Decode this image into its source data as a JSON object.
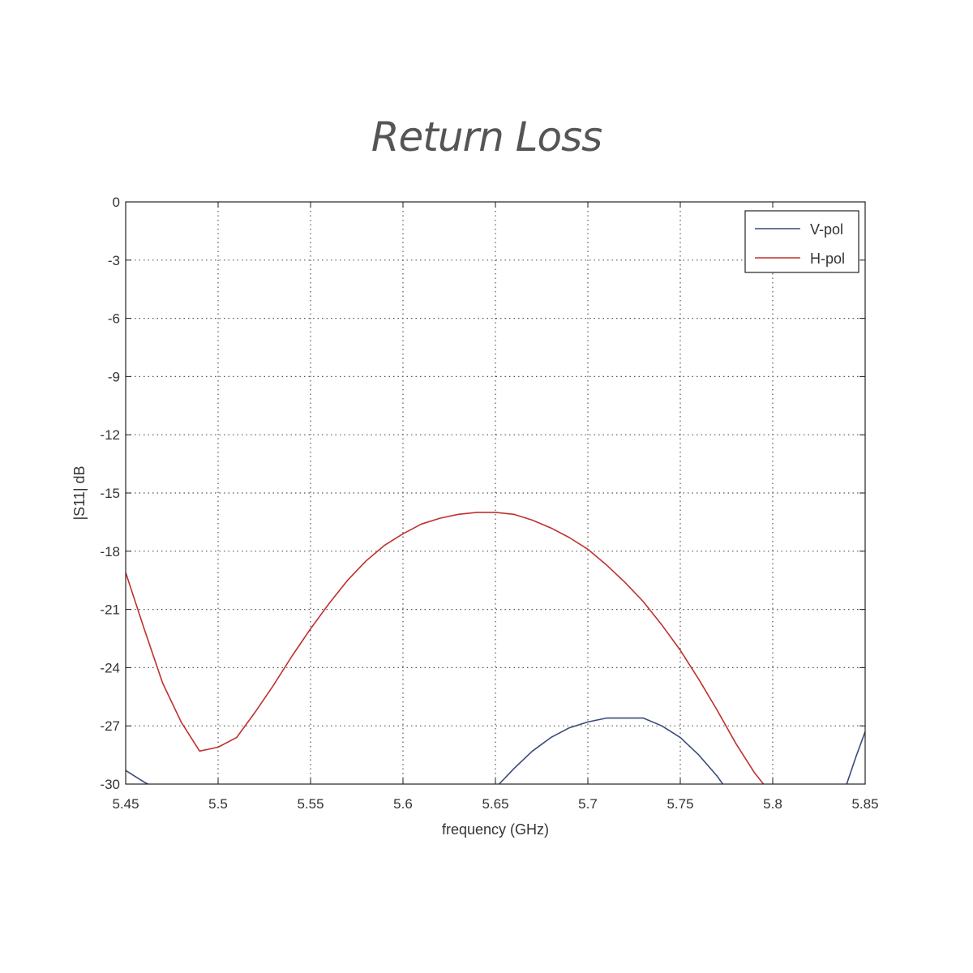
{
  "chart_data": {
    "type": "line",
    "title": "Return Loss",
    "xlabel": "frequency (GHz)",
    "ylabel": "|S11| dB",
    "xlim": [
      5.45,
      5.85
    ],
    "ylim": [
      -30,
      0
    ],
    "xticks": [
      5.45,
      5.5,
      5.55,
      5.6,
      5.65,
      5.7,
      5.75,
      5.8,
      5.85
    ],
    "xtick_labels": [
      "5.45",
      "5.5",
      "5.55",
      "5.6",
      "5.65",
      "5.7",
      "5.75",
      "5.8",
      "5.85"
    ],
    "yticks": [
      0,
      -3,
      -6,
      -9,
      -12,
      -15,
      -18,
      -21,
      -24,
      -27,
      -30
    ],
    "ytick_labels": [
      "0",
      "-3",
      "-6",
      "-9",
      "-12",
      "-15",
      "-18",
      "-21",
      "-24",
      "-27",
      "-30"
    ],
    "grid": true,
    "legend_position": "top-right",
    "series": [
      {
        "name": "V-pol",
        "color": "#3a4a7a",
        "segments": [
          [
            [
              5.45,
              -29.3
            ],
            [
              5.455,
              -29.6
            ],
            [
              5.46,
              -29.9
            ],
            [
              5.462,
              -30.0
            ]
          ],
          [
            [
              5.652,
              -30.0
            ],
            [
              5.66,
              -29.2
            ],
            [
              5.67,
              -28.3
            ],
            [
              5.68,
              -27.6
            ],
            [
              5.69,
              -27.1
            ],
            [
              5.7,
              -26.8
            ],
            [
              5.71,
              -26.6
            ],
            [
              5.72,
              -26.6
            ],
            [
              5.73,
              -26.6
            ],
            [
              5.74,
              -27.0
            ],
            [
              5.75,
              -27.6
            ],
            [
              5.76,
              -28.5
            ],
            [
              5.77,
              -29.6
            ],
            [
              5.773,
              -30.0
            ]
          ],
          [
            [
              5.84,
              -30.0
            ],
            [
              5.845,
              -28.6
            ],
            [
              5.85,
              -27.3
            ]
          ]
        ]
      },
      {
        "name": "H-pol",
        "color": "#c0302c",
        "segments": [
          [
            [
              5.45,
              -19.1
            ],
            [
              5.46,
              -22.0
            ],
            [
              5.47,
              -24.8
            ],
            [
              5.48,
              -26.8
            ],
            [
              5.49,
              -28.3
            ],
            [
              5.5,
              -28.1
            ],
            [
              5.51,
              -27.6
            ],
            [
              5.52,
              -26.3
            ],
            [
              5.53,
              -24.9
            ],
            [
              5.54,
              -23.4
            ],
            [
              5.55,
              -22.0
            ],
            [
              5.56,
              -20.7
            ],
            [
              5.57,
              -19.5
            ],
            [
              5.58,
              -18.5
            ],
            [
              5.59,
              -17.7
            ],
            [
              5.6,
              -17.1
            ],
            [
              5.61,
              -16.6
            ],
            [
              5.62,
              -16.3
            ],
            [
              5.63,
              -16.1
            ],
            [
              5.64,
              -16.0
            ],
            [
              5.65,
              -16.0
            ],
            [
              5.66,
              -16.1
            ],
            [
              5.67,
              -16.4
            ],
            [
              5.68,
              -16.8
            ],
            [
              5.69,
              -17.3
            ],
            [
              5.7,
              -17.9
            ],
            [
              5.71,
              -18.7
            ],
            [
              5.72,
              -19.6
            ],
            [
              5.73,
              -20.6
            ],
            [
              5.74,
              -21.8
            ],
            [
              5.75,
              -23.1
            ],
            [
              5.76,
              -24.6
            ],
            [
              5.77,
              -26.2
            ],
            [
              5.78,
              -27.9
            ],
            [
              5.79,
              -29.4
            ],
            [
              5.795,
              -30.0
            ]
          ]
        ]
      }
    ]
  }
}
